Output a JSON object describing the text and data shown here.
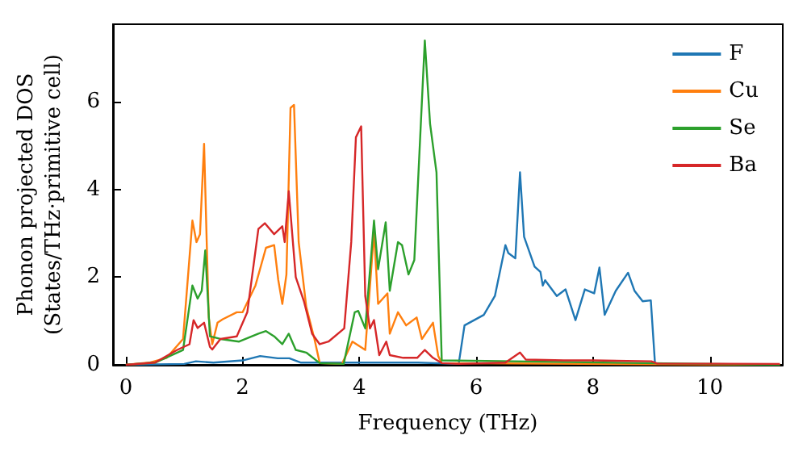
{
  "chart_data": {
    "type": "line",
    "xlabel": "Frequency (THz)",
    "ylabel": "Phonon projected DOS\n(States/THz·primitive cell)",
    "xlim": [
      -0.22,
      11.25
    ],
    "xticks": [
      0,
      2,
      4,
      6,
      8,
      10
    ],
    "ylim": [
      0,
      7.77
    ],
    "yticks": [
      0,
      2,
      4,
      6
    ],
    "grid": false,
    "legend": "top right",
    "marker": "none",
    "line_style": "solid",
    "series": [
      {
        "name": "F",
        "color": "#1f77b4",
        "x": [
          0,
          1.0,
          1.2,
          1.5,
          2.0,
          2.3,
          2.6,
          2.8,
          3.0,
          4.0,
          5.0,
          5.7,
          5.8,
          6.13,
          6.32,
          6.5,
          6.55,
          6.67,
          6.75,
          6.82,
          7.0,
          7.1,
          7.14,
          7.18,
          7.38,
          7.53,
          7.7,
          7.86,
          8.02,
          8.11,
          8.2,
          8.39,
          8.6,
          8.71,
          8.85,
          8.99,
          9.06
        ],
        "values": [
          0,
          0.02,
          0.08,
          0.05,
          0.1,
          0.2,
          0.15,
          0.15,
          0.05,
          0.05,
          0.05,
          0.02,
          0.9,
          1.14,
          1.57,
          2.73,
          2.55,
          2.43,
          4.39,
          2.92,
          2.24,
          2.12,
          1.81,
          1.93,
          1.57,
          1.72,
          1.02,
          1.72,
          1.63,
          2.22,
          1.14,
          1.69,
          2.1,
          1.69,
          1.45,
          1.47,
          0.06
        ]
      },
      {
        "name": "Cu",
        "color": "#ff7f0e",
        "x": [
          0,
          0.4,
          0.7,
          0.98,
          1.14,
          1.21,
          1.27,
          1.34,
          1.42,
          1.48,
          1.57,
          1.66,
          1.9,
          2.0,
          2.22,
          2.4,
          2.54,
          2.61,
          2.68,
          2.75,
          2.82,
          2.88,
          2.96,
          3.09,
          3.23,
          3.32,
          3.7,
          3.88,
          4.1,
          4.25,
          4.32,
          4.48,
          4.52,
          4.66,
          4.8,
          4.98,
          5.07,
          5.26,
          5.35,
          5.41,
          11.2
        ],
        "values": [
          0,
          0.05,
          0.16,
          0.59,
          3.29,
          2.8,
          2.98,
          5.04,
          1.08,
          0.47,
          0.96,
          1.04,
          1.2,
          1.2,
          1.81,
          2.67,
          2.73,
          1.94,
          1.39,
          2.06,
          5.86,
          5.93,
          2.8,
          1.32,
          0.59,
          0.04,
          0.02,
          0.53,
          0.34,
          3.04,
          1.39,
          1.63,
          0.71,
          1.2,
          0.9,
          1.08,
          0.59,
          0.96,
          0.2,
          0.04,
          0
        ]
      },
      {
        "name": "Se",
        "color": "#2ca02c",
        "x": [
          0,
          0.5,
          0.98,
          1.14,
          1.23,
          1.3,
          1.36,
          1.44,
          1.62,
          1.94,
          2.27,
          2.4,
          2.54,
          2.68,
          2.79,
          2.91,
          3.09,
          3.32,
          3.73,
          3.92,
          3.98,
          4.1,
          4.25,
          4.32,
          4.45,
          4.52,
          4.66,
          4.73,
          4.84,
          4.94,
          5.12,
          5.21,
          5.32,
          5.41,
          11.2
        ],
        "values": [
          0,
          0.05,
          0.34,
          1.81,
          1.51,
          1.69,
          2.61,
          0.65,
          0.59,
          0.53,
          0.71,
          0.77,
          0.65,
          0.47,
          0.71,
          0.34,
          0.28,
          0.04,
          0.02,
          1.2,
          1.23,
          0.83,
          3.29,
          2.18,
          3.25,
          1.69,
          2.8,
          2.73,
          2.06,
          2.39,
          7.4,
          5.5,
          4.39,
          0.1,
          0
        ]
      },
      {
        "name": "Ba",
        "color": "#d62728",
        "x": [
          0,
          0.5,
          0.88,
          1.09,
          1.16,
          1.23,
          1.34,
          1.44,
          1.48,
          1.62,
          1.9,
          2.08,
          2.27,
          2.38,
          2.54,
          2.68,
          2.72,
          2.79,
          2.91,
          3.05,
          3.19,
          3.32,
          3.47,
          3.74,
          3.86,
          3.94,
          4.03,
          4.1,
          4.18,
          4.25,
          4.34,
          4.46,
          4.52,
          4.75,
          4.99,
          5.12,
          5.26,
          5.41,
          5.7,
          6.5,
          6.75,
          6.85,
          7.5,
          8.0,
          9.0,
          9.1,
          11.2
        ],
        "values": [
          0,
          0.05,
          0.34,
          0.47,
          1.02,
          0.84,
          0.96,
          0.41,
          0.35,
          0.59,
          0.65,
          1.2,
          3.1,
          3.23,
          2.98,
          3.16,
          2.8,
          3.96,
          2.0,
          1.45,
          0.71,
          0.47,
          0.53,
          0.83,
          2.8,
          5.19,
          5.44,
          1.57,
          0.83,
          1.02,
          0.22,
          0.53,
          0.22,
          0.16,
          0.16,
          0.34,
          0.16,
          0.04,
          0.02,
          0.05,
          0.28,
          0.12,
          0.1,
          0.1,
          0.08,
          0.03,
          0.02
        ]
      }
    ]
  }
}
